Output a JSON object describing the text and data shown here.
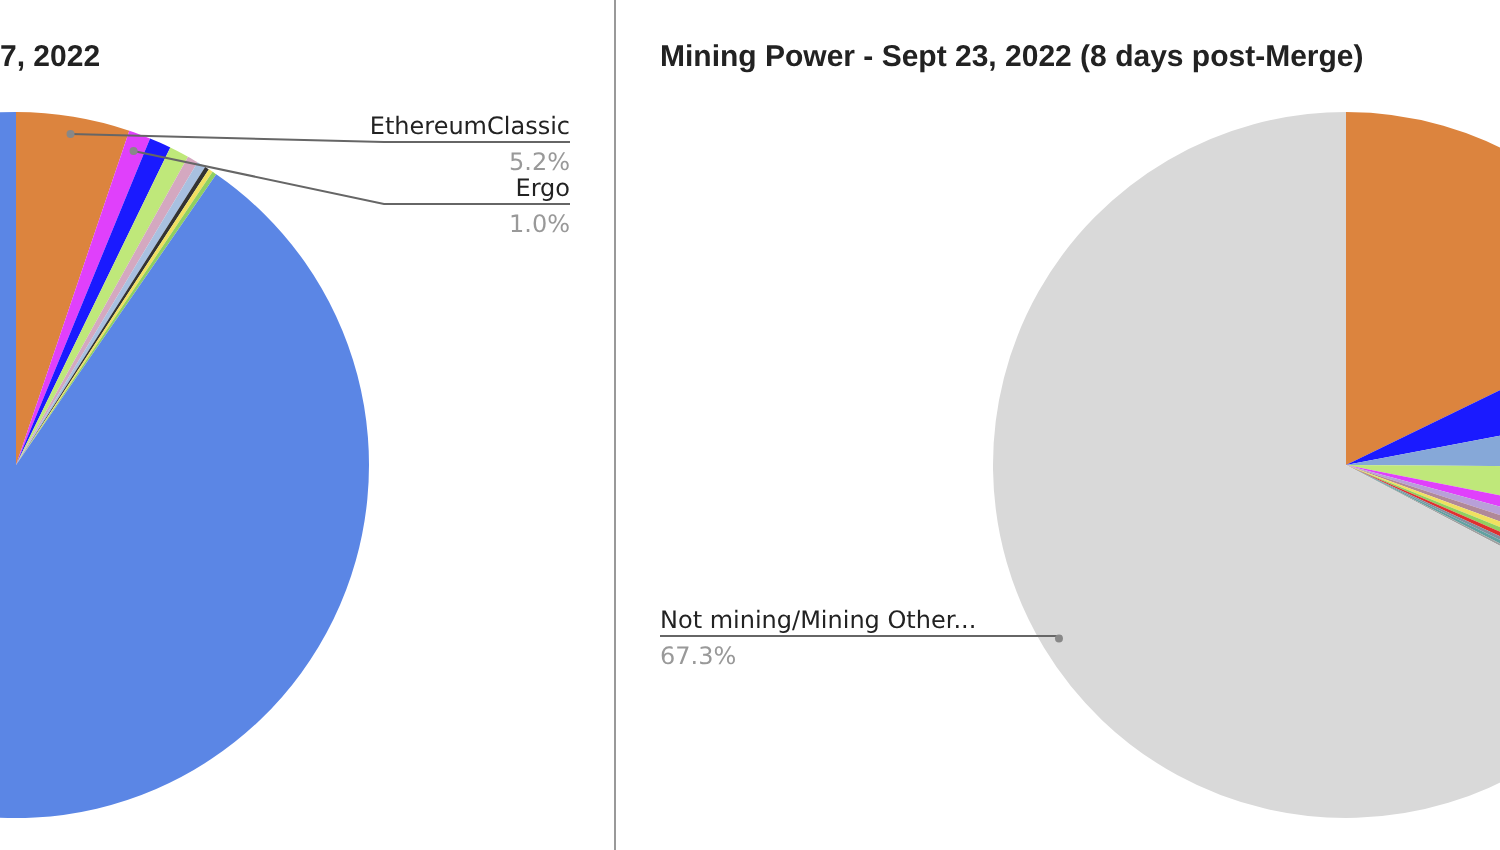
{
  "chart_data": [
    {
      "type": "pie",
      "title": "7, 2022",
      "categories": [
        "EthereumClassic",
        "Ergo",
        null,
        null,
        null,
        null,
        null,
        null,
        null,
        null
      ],
      "values": [
        5.2,
        1.0,
        1.0,
        0.9,
        0.5,
        0.4,
        0.2,
        0.2,
        0.2,
        90.4
      ],
      "colors": [
        "#dc843e",
        "#e040fb",
        "#1a1aff",
        "#bfe87a",
        "#d4a8c0",
        "#a8c0e0",
        "#333333",
        "#f0e060",
        "#90d060",
        "#5b86e5"
      ],
      "value_labels": [
        "5.2%",
        "1.0%",
        null,
        null,
        null,
        null,
        null,
        null,
        null,
        null
      ]
    },
    {
      "type": "pie",
      "title": "Mining Power - Sept 23, 2022 (8 days post-Merge)",
      "categories": [
        null,
        null,
        null,
        null,
        null,
        null,
        null,
        null,
        null,
        null,
        null,
        null,
        null,
        "Not mining/Mining Other..."
      ],
      "values": [
        17.8,
        4.2,
        3.1,
        3.0,
        1.1,
        0.8,
        0.6,
        0.5,
        0.4,
        0.4,
        0.3,
        0.3,
        0.2,
        67.3
      ],
      "colors": [
        "#dc843e",
        "#1a1aff",
        "#86a8d8",
        "#bfe87a",
        "#e040fb",
        "#b8a0d8",
        "#b08898",
        "#f0e060",
        "#90d060",
        "#e03030",
        "#8090a0",
        "#60a0a0",
        "#a0a0a0",
        "#d9d9d9"
      ],
      "value_labels": [
        null,
        null,
        null,
        null,
        null,
        null,
        null,
        null,
        null,
        null,
        null,
        null,
        null,
        "67.3%"
      ]
    }
  ]
}
